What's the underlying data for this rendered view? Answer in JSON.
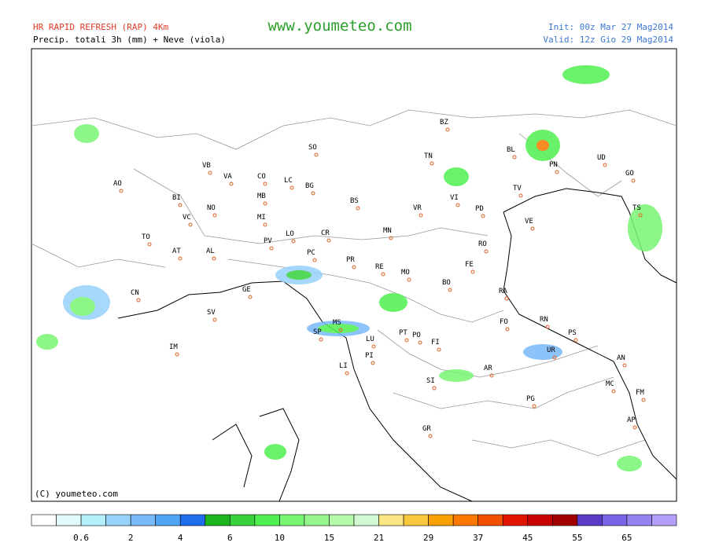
{
  "header": {
    "model": "HR RAPID REFRESH (RAP) 4Km",
    "product": "Precip. totali 3h (mm) + Neve (viola)",
    "site": "www.youmeteo.com",
    "init": "Init: 00z Mar  27 Mag2014",
    "valid": "Valid: 12z Gio  29 Mag2014"
  },
  "map": {
    "copyright": "(C) youmeteo.com",
    "cities": [
      "BZ",
      "SO",
      "BL",
      "PN",
      "UD",
      "GO",
      "TN",
      "VB",
      "VA",
      "CO",
      "LC",
      "BG",
      "AO",
      "BI",
      "NO",
      "MB",
      "VI",
      "TV",
      "TS",
      "VC",
      "MI",
      "BS",
      "VR",
      "PD",
      "TO",
      "PV",
      "LO",
      "CR",
      "MN",
      "VE",
      "AT",
      "AL",
      "PC",
      "RO",
      "PR",
      "RE",
      "MO",
      "FE",
      "CN",
      "GE",
      "BO",
      "RA",
      "SV",
      "FO",
      "RN",
      "PS",
      "SP",
      "MS",
      "LU",
      "PT",
      "PO",
      "FI",
      "UR",
      "IM",
      "PI",
      "LI",
      "AN",
      "AR",
      "SI",
      "MC",
      "FM",
      "PG",
      "AP",
      "GR"
    ]
  },
  "colorbar": {
    "colors": [
      "#ffffff",
      "#e1fafa",
      "#b4f0fa",
      "#96d2fa",
      "#78b9fa",
      "#50a5f5",
      "#1e6eeb",
      "#1eb41e",
      "#37d23c",
      "#50f050",
      "#78f573",
      "#96f58c",
      "#b4faaa",
      "#d2fad2",
      "#fae682",
      "#fac83c",
      "#faa000",
      "#fa7800",
      "#f05000",
      "#e11400",
      "#c80000",
      "#a00000",
      "#5a3cc8",
      "#7864e6",
      "#9682f0",
      "#b4a0fa"
    ],
    "labels": [
      "0.6",
      "2",
      "4",
      "6",
      "10",
      "15",
      "21",
      "29",
      "37",
      "45",
      "55",
      "65"
    ]
  }
}
